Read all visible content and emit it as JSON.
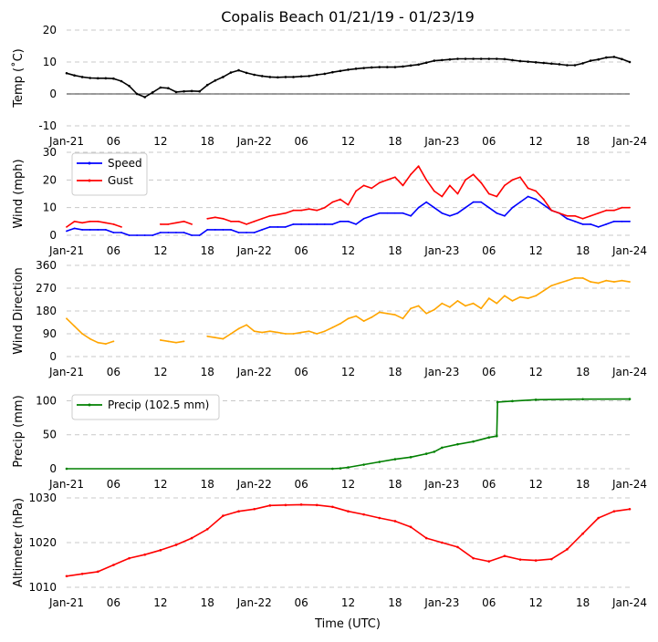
{
  "chart_data": {
    "title": "Copalis Beach 01/21/19 - 01/23/19",
    "xlabel": "Time (UTC)",
    "x_range_hours": [
      0,
      72
    ],
    "x_ticks": [
      {
        "h": 0,
        "label": "Jan-21"
      },
      {
        "h": 6,
        "label": "06"
      },
      {
        "h": 12,
        "label": "12"
      },
      {
        "h": 18,
        "label": "18"
      },
      {
        "h": 24,
        "label": "Jan-22"
      },
      {
        "h": 30,
        "label": "06"
      },
      {
        "h": 36,
        "label": "12"
      },
      {
        "h": 42,
        "label": "18"
      },
      {
        "h": 48,
        "label": "Jan-23"
      },
      {
        "h": 54,
        "label": "06"
      },
      {
        "h": 60,
        "label": "12"
      },
      {
        "h": 66,
        "label": "18"
      },
      {
        "h": 72,
        "label": "Jan-24"
      }
    ],
    "panels": [
      {
        "id": "temp",
        "type": "line",
        "ylabel": "Temp ($^\\circ$C)",
        "ylabel_display": "Temp (˚C)",
        "ylim": [
          -10,
          20
        ],
        "yticks": [
          -10,
          0,
          10,
          20
        ],
        "zero_line": true,
        "legend": null,
        "series": [
          {
            "name": "Temp",
            "color": "#000000",
            "marker": "dot",
            "x": [
              0,
              1,
              2,
              3,
              4,
              5,
              6,
              7,
              8,
              9,
              10,
              11,
              12,
              13,
              14,
              15,
              16,
              17,
              18,
              19,
              20,
              21,
              22,
              23,
              24,
              25,
              26,
              27,
              28,
              29,
              30,
              31,
              32,
              33,
              34,
              35,
              36,
              37,
              38,
              39,
              40,
              41,
              42,
              43,
              44,
              45,
              46,
              47,
              48,
              49,
              50,
              51,
              52,
              53,
              54,
              55,
              56,
              57,
              58,
              59,
              60,
              61,
              62,
              63,
              64,
              65,
              66,
              67,
              68,
              69,
              70,
              71,
              72
            ],
            "y": [
              6.5,
              5.8,
              5.3,
              5,
              4.9,
              4.9,
              4.8,
              4.0,
              2.5,
              0,
              -1,
              0.5,
              2.0,
              1.8,
              0.6,
              0.8,
              0.9,
              0.8,
              2.8,
              4.2,
              5.3,
              6.7,
              7.4,
              6.6,
              6.0,
              5.6,
              5.3,
              5.2,
              5.3,
              5.3,
              5.5,
              5.6,
              6.0,
              6.3,
              6.8,
              7.2,
              7.6,
              7.9,
              8.1,
              8.3,
              8.4,
              8.4,
              8.4,
              8.6,
              8.9,
              9.2,
              9.8,
              10.4,
              10.6,
              10.8,
              11.0,
              11.0,
              11.0,
              11.0,
              11.0,
              11.0,
              10.9,
              10.6,
              10.3,
              10.1,
              9.9,
              9.7,
              9.5,
              9.3,
              9.0,
              9.0,
              9.6,
              10.4,
              10.8,
              11.4,
              11.6,
              10.9,
              10.0
            ]
          }
        ]
      },
      {
        "id": "wind",
        "type": "line",
        "ylabel": "Wind (mph)",
        "ylim": [
          0,
          30
        ],
        "yticks": [
          0,
          10,
          20,
          30
        ],
        "zero_line": false,
        "legend": {
          "loc": "upper-left",
          "entries": [
            "Speed",
            "Gust"
          ]
        },
        "series": [
          {
            "name": "Speed",
            "color": "#0000ff",
            "x": [
              0,
              1,
              2,
              3,
              4,
              5,
              6,
              7,
              8,
              9,
              10,
              11,
              12,
              13,
              14,
              15,
              16,
              17,
              18,
              19,
              20,
              21,
              22,
              23,
              24,
              25,
              26,
              27,
              28,
              29,
              30,
              31,
              32,
              33,
              34,
              35,
              36,
              37,
              38,
              39,
              40,
              41,
              42,
              43,
              44,
              45,
              46,
              47,
              48,
              49,
              50,
              51,
              52,
              53,
              54,
              55,
              56,
              57,
              58,
              59,
              60,
              61,
              62,
              63,
              64,
              65,
              66,
              67,
              68,
              69,
              70,
              71,
              72
            ],
            "y": [
              1.5,
              2.5,
              2,
              2,
              2,
              2,
              1,
              1,
              0,
              0,
              0,
              0,
              1,
              1,
              1,
              1,
              0,
              0,
              2,
              2,
              2,
              2,
              1,
              1,
              1,
              2,
              3,
              3,
              3,
              4,
              4,
              4,
              4,
              4,
              4,
              5,
              5,
              4,
              6,
              7,
              8,
              8,
              8,
              8,
              7,
              10,
              12,
              10,
              8,
              7,
              8,
              10,
              12,
              12,
              10,
              8,
              7,
              10,
              12,
              14,
              13,
              11,
              9,
              8,
              6,
              5,
              4,
              4,
              3,
              4,
              5,
              5,
              5
            ]
          },
          {
            "name": "Gust",
            "color": "#ff0000",
            "x": [
              0,
              1,
              2,
              3,
              4,
              5,
              6,
              7,
              8,
              9,
              10,
              11,
              12,
              13,
              14,
              15,
              16,
              17,
              18,
              19,
              20,
              21,
              22,
              23,
              24,
              25,
              26,
              27,
              28,
              29,
              30,
              31,
              32,
              33,
              34,
              35,
              36,
              37,
              38,
              39,
              40,
              41,
              42,
              43,
              44,
              45,
              46,
              47,
              48,
              49,
              50,
              51,
              52,
              53,
              54,
              55,
              56,
              57,
              58,
              59,
              60,
              61,
              62,
              63,
              64,
              65,
              66,
              67,
              68,
              69,
              70,
              71,
              72
            ],
            "y": [
              3,
              5,
              4.5,
              5,
              5,
              4.5,
              4,
              3,
              null,
              null,
              null,
              null,
              4,
              4,
              4.5,
              5,
              4,
              null,
              6,
              6.5,
              6,
              5,
              5,
              4,
              5,
              6,
              7,
              7.5,
              8,
              9,
              9,
              9.5,
              9,
              10,
              12,
              13,
              11,
              16,
              18,
              17,
              19,
              20,
              21,
              18,
              22,
              25,
              20,
              16,
              14,
              18,
              15,
              20,
              22,
              19,
              15,
              14,
              18,
              20,
              21,
              17,
              16,
              13,
              9,
              8,
              7,
              7,
              6,
              7,
              8,
              9,
              9,
              10,
              10
            ]
          }
        ]
      },
      {
        "id": "wdir",
        "type": "line",
        "ylabel": "Wind Direction",
        "ylim": [
          0,
          360
        ],
        "yticks": [
          0,
          90,
          180,
          270,
          360
        ],
        "zero_line": false,
        "legend": null,
        "series": [
          {
            "name": "Wind Direction",
            "color": "#ffa500",
            "x": [
              0,
              1,
              2,
              3,
              4,
              5,
              6,
              7,
              8,
              9,
              10,
              11,
              12,
              13,
              14,
              15,
              16,
              17,
              18,
              19,
              20,
              21,
              22,
              23,
              24,
              25,
              26,
              27,
              28,
              29,
              30,
              31,
              32,
              33,
              34,
              35,
              36,
              37,
              38,
              39,
              40,
              41,
              42,
              43,
              44,
              45,
              46,
              47,
              48,
              49,
              50,
              51,
              52,
              53,
              54,
              55,
              56,
              57,
              58,
              59,
              60,
              61,
              62,
              63,
              64,
              65,
              66,
              67,
              68,
              69,
              70,
              71,
              72
            ],
            "y": [
              150,
              120,
              90,
              70,
              55,
              50,
              60,
              null,
              null,
              null,
              null,
              null,
              65,
              60,
              55,
              60,
              null,
              null,
              80,
              75,
              70,
              90,
              110,
              125,
              100,
              95,
              100,
              95,
              90,
              90,
              95,
              100,
              90,
              100,
              115,
              130,
              150,
              160,
              140,
              155,
              175,
              170,
              165,
              150,
              190,
              200,
              170,
              185,
              210,
              195,
              220,
              200,
              210,
              190,
              230,
              210,
              240,
              220,
              235,
              230,
              240,
              260,
              280,
              290,
              300,
              310,
              310,
              295,
              290,
              300,
              295,
              300,
              295
            ]
          }
        ]
      },
      {
        "id": "precip",
        "type": "line",
        "ylabel": "Precip (mm)",
        "ylim": [
          0,
          110
        ],
        "yticks": [
          0,
          50,
          100
        ],
        "zero_line": false,
        "legend": {
          "loc": "upper-left",
          "entries": [
            "Precip (102.5 mm)"
          ]
        },
        "series": [
          {
            "name": "Precip (102.5 mm)",
            "color": "#008000",
            "marker": "dot",
            "x": [
              0,
              34,
              35,
              36,
              38,
              40,
              42,
              44,
              46,
              47,
              48,
              50,
              52,
              54,
              55.0,
              55.1,
              57,
              60,
              66,
              72
            ],
            "y": [
              0,
              0,
              0.5,
              2,
              6,
              10,
              14,
              17,
              22,
              25,
              31,
              36,
              40,
              46,
              48,
              98,
              99.5,
              101.5,
              102.3,
              102.5
            ]
          }
        ]
      },
      {
        "id": "altim",
        "type": "line",
        "ylabel": "Altimeter (hPa)",
        "ylim": [
          1010,
          1030
        ],
        "yticks": [
          1010,
          1020,
          1030
        ],
        "zero_line": false,
        "legend": null,
        "series": [
          {
            "name": "Altimeter",
            "color": "#ff0000",
            "marker": "dot",
            "x": [
              0,
              2,
              4,
              6,
              8,
              10,
              12,
              14,
              16,
              18,
              20,
              22,
              24,
              26,
              28,
              30,
              32,
              34,
              36,
              38,
              40,
              42,
              44,
              46,
              48,
              50,
              52,
              54,
              56,
              58,
              60,
              62,
              64,
              66,
              68,
              70,
              72
            ],
            "y": [
              1012.5,
              1013.0,
              1013.5,
              1015.0,
              1016.5,
              1017.3,
              1018.3,
              1019.5,
              1021.0,
              1023.0,
              1026.0,
              1027.0,
              1027.5,
              1028.3,
              1028.4,
              1028.5,
              1028.4,
              1028.0,
              1027.0,
              1026.3,
              1025.5,
              1024.8,
              1023.5,
              1021.0,
              1020.0,
              1019.0,
              1016.5,
              1015.8,
              1017.0,
              1016.2,
              1016.0,
              1016.3,
              1018.5,
              1022.0,
              1025.5,
              1027.0,
              1027.5
            ]
          }
        ]
      }
    ]
  }
}
